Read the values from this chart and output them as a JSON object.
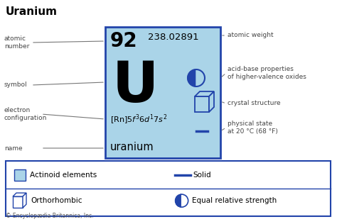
{
  "title": "Uranium",
  "atomic_number": "92",
  "atomic_weight": "238.02891",
  "symbol": "U",
  "name": "uranium",
  "electron_config": "$[\\mathrm{Rn}]5f^{3}6d^{1}7s^{2}$",
  "bg_color": "#aad4e8",
  "box_edge_color": "#2244aa",
  "legend_bg": "#ffffff",
  "text_color": "#000000",
  "label_color": "#444444",
  "copyright": "© Encyclopædia Britannica, Inc.",
  "left_labels": [
    "atomic\nnumber",
    "symbol",
    "electron\nconfiguration",
    "name"
  ],
  "right_labels": [
    "atomic weight",
    "acid-base properties\nof higher-valence oxides",
    "crystal structure",
    "physical state\nat 20 °C (68 °F)"
  ]
}
